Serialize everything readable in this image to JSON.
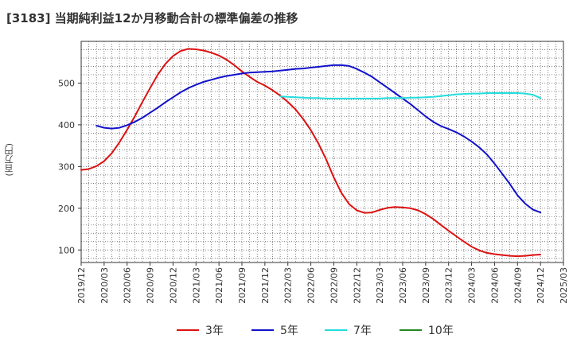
{
  "title": "[3183]  当期純利益12か月移動合計の標準偏差の推移",
  "chart_data": {
    "type": "line",
    "ylabel": "(百万円)",
    "xlabel": "",
    "ylim": [
      70,
      600
    ],
    "yticks": [
      100,
      200,
      300,
      400,
      500
    ],
    "xticks": [
      "2019/12",
      "2020/03",
      "2020/06",
      "2020/09",
      "2020/12",
      "2021/03",
      "2021/06",
      "2021/09",
      "2021/12",
      "2022/03",
      "2022/06",
      "2022/09",
      "2022/12",
      "2023/03",
      "2023/06",
      "2023/09",
      "2023/12",
      "2024/03",
      "2024/06",
      "2024/09",
      "2024/12",
      "2025/03"
    ],
    "grid": true,
    "legend_position": "bottom",
    "series": [
      {
        "name": "3年",
        "color": "#dd1111",
        "points": [
          [
            "2019/12",
            292
          ],
          [
            "2020/01",
            294
          ],
          [
            "2020/02",
            301
          ],
          [
            "2020/03",
            313
          ],
          [
            "2020/04",
            332
          ],
          [
            "2020/05",
            358
          ],
          [
            "2020/06",
            388
          ],
          [
            "2020/07",
            420
          ],
          [
            "2020/08",
            455
          ],
          [
            "2020/09",
            488
          ],
          [
            "2020/10",
            520
          ],
          [
            "2020/11",
            546
          ],
          [
            "2020/12",
            565
          ],
          [
            "2021/01",
            577
          ],
          [
            "2021/02",
            582
          ],
          [
            "2021/03",
            581
          ],
          [
            "2021/04",
            578
          ],
          [
            "2021/05",
            573
          ],
          [
            "2021/06",
            566
          ],
          [
            "2021/07",
            556
          ],
          [
            "2021/08",
            543
          ],
          [
            "2021/09",
            528
          ],
          [
            "2021/10",
            515
          ],
          [
            "2021/11",
            503
          ],
          [
            "2021/12",
            494
          ],
          [
            "2022/01",
            483
          ],
          [
            "2022/02",
            470
          ],
          [
            "2022/03",
            455
          ],
          [
            "2022/04",
            437
          ],
          [
            "2022/05",
            414
          ],
          [
            "2022/06",
            387
          ],
          [
            "2022/07",
            355
          ],
          [
            "2022/08",
            317
          ],
          [
            "2022/09",
            274
          ],
          [
            "2022/10",
            237
          ],
          [
            "2022/11",
            210
          ],
          [
            "2022/12",
            195
          ],
          [
            "2023/01",
            189
          ],
          [
            "2023/02",
            190
          ],
          [
            "2023/03",
            196
          ],
          [
            "2023/04",
            201
          ],
          [
            "2023/05",
            203
          ],
          [
            "2023/06",
            202
          ],
          [
            "2023/07",
            200
          ],
          [
            "2023/08",
            195
          ],
          [
            "2023/09",
            186
          ],
          [
            "2023/10",
            174
          ],
          [
            "2023/11",
            160
          ],
          [
            "2023/12",
            146
          ],
          [
            "2024/01",
            133
          ],
          [
            "2024/02",
            120
          ],
          [
            "2024/03",
            108
          ],
          [
            "2024/04",
            99
          ],
          [
            "2024/05",
            93
          ],
          [
            "2024/06",
            90
          ],
          [
            "2024/07",
            88
          ],
          [
            "2024/08",
            86
          ],
          [
            "2024/09",
            85
          ],
          [
            "2024/10",
            86
          ],
          [
            "2024/11",
            88
          ],
          [
            "2024/12",
            89
          ]
        ]
      },
      {
        "name": "5年",
        "color": "#1111cc",
        "points": [
          [
            "2020/02",
            398
          ],
          [
            "2020/03",
            393
          ],
          [
            "2020/04",
            391
          ],
          [
            "2020/05",
            393
          ],
          [
            "2020/06",
            399
          ],
          [
            "2020/07",
            407
          ],
          [
            "2020/08",
            417
          ],
          [
            "2020/09",
            429
          ],
          [
            "2020/10",
            441
          ],
          [
            "2020/11",
            454
          ],
          [
            "2020/12",
            466
          ],
          [
            "2021/01",
            478
          ],
          [
            "2021/02",
            488
          ],
          [
            "2021/03",
            496
          ],
          [
            "2021/04",
            503
          ],
          [
            "2021/05",
            508
          ],
          [
            "2021/06",
            513
          ],
          [
            "2021/07",
            517
          ],
          [
            "2021/08",
            520
          ],
          [
            "2021/09",
            523
          ],
          [
            "2021/10",
            525
          ],
          [
            "2021/11",
            526
          ],
          [
            "2021/12",
            527
          ],
          [
            "2022/01",
            528
          ],
          [
            "2022/02",
            530
          ],
          [
            "2022/03",
            532
          ],
          [
            "2022/04",
            534
          ],
          [
            "2022/05",
            535
          ],
          [
            "2022/06",
            537
          ],
          [
            "2022/07",
            539
          ],
          [
            "2022/08",
            541
          ],
          [
            "2022/09",
            543
          ],
          [
            "2022/10",
            543
          ],
          [
            "2022/11",
            541
          ],
          [
            "2022/12",
            534
          ],
          [
            "2023/01",
            525
          ],
          [
            "2023/02",
            515
          ],
          [
            "2023/03",
            502
          ],
          [
            "2023/04",
            489
          ],
          [
            "2023/05",
            476
          ],
          [
            "2023/06",
            463
          ],
          [
            "2023/07",
            450
          ],
          [
            "2023/08",
            435
          ],
          [
            "2023/09",
            420
          ],
          [
            "2023/10",
            407
          ],
          [
            "2023/11",
            397
          ],
          [
            "2023/12",
            390
          ],
          [
            "2024/01",
            382
          ],
          [
            "2024/02",
            372
          ],
          [
            "2024/03",
            360
          ],
          [
            "2024/04",
            346
          ],
          [
            "2024/05",
            329
          ],
          [
            "2024/06",
            307
          ],
          [
            "2024/07",
            283
          ],
          [
            "2024/08",
            258
          ],
          [
            "2024/09",
            231
          ],
          [
            "2024/10",
            211
          ],
          [
            "2024/11",
            197
          ],
          [
            "2024/12",
            190
          ]
        ]
      },
      {
        "name": "7年",
        "color": "#22dddd",
        "points": [
          [
            "2022/02",
            468
          ],
          [
            "2022/03",
            467
          ],
          [
            "2022/04",
            466
          ],
          [
            "2022/05",
            465
          ],
          [
            "2022/06",
            464
          ],
          [
            "2022/07",
            464
          ],
          [
            "2022/08",
            463
          ],
          [
            "2022/09",
            463
          ],
          [
            "2022/10",
            463
          ],
          [
            "2022/11",
            463
          ],
          [
            "2022/12",
            463
          ],
          [
            "2023/01",
            463
          ],
          [
            "2023/02",
            463
          ],
          [
            "2023/03",
            463
          ],
          [
            "2023/04",
            464
          ],
          [
            "2023/05",
            464
          ],
          [
            "2023/06",
            464
          ],
          [
            "2023/07",
            465
          ],
          [
            "2023/08",
            465
          ],
          [
            "2023/09",
            466
          ],
          [
            "2023/10",
            467
          ],
          [
            "2023/11",
            469
          ],
          [
            "2023/12",
            471
          ],
          [
            "2024/01",
            473
          ],
          [
            "2024/02",
            474
          ],
          [
            "2024/03",
            475
          ],
          [
            "2024/04",
            475
          ],
          [
            "2024/05",
            476
          ],
          [
            "2024/06",
            476
          ],
          [
            "2024/07",
            476
          ],
          [
            "2024/08",
            476
          ],
          [
            "2024/09",
            476
          ],
          [
            "2024/10",
            475
          ],
          [
            "2024/11",
            472
          ],
          [
            "2024/12",
            464
          ]
        ]
      },
      {
        "name": "10年",
        "color": "#228822",
        "points": []
      }
    ]
  }
}
